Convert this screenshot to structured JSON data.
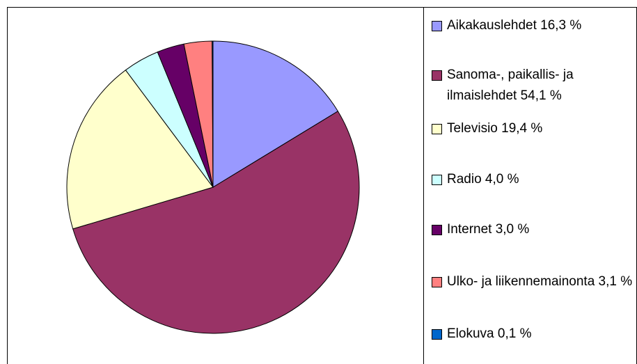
{
  "chart_data": {
    "type": "pie",
    "categories": [
      "Aikakauslehdet 16,3 %",
      "Sanoma-, paikallis- ja ilmaislehdet 54,1 %",
      "Televisio 19,4 %",
      "Radio 4,0 %",
      "Internet 3,0 %",
      "Ulko- ja liikennemainonta 3,1 %",
      "Elokuva 0,1 %"
    ],
    "values": [
      16.3,
      54.1,
      19.4,
      4.0,
      3.0,
      3.1,
      0.1
    ],
    "colors": [
      "#9999ff",
      "#993366",
      "#ffffcc",
      "#ccffff",
      "#660066",
      "#ff8080",
      "#0066cc"
    ]
  }
}
